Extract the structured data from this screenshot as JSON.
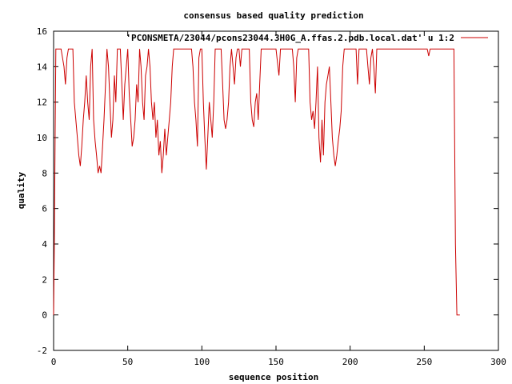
{
  "chart_data": {
    "type": "line",
    "title": "consensus based quality prediction",
    "xlabel": "sequence position",
    "ylabel": "quality",
    "xlim": [
      0,
      300
    ],
    "ylim": [
      -2,
      16
    ],
    "xticks": [
      0,
      50,
      100,
      150,
      200,
      250,
      300
    ],
    "yticks": [
      -2,
      0,
      2,
      4,
      6,
      8,
      10,
      12,
      14,
      16
    ],
    "grid": false,
    "legend_position": "top-right",
    "series": [
      {
        "name": "'PCONSMETA/23044/pcons23044.3H0G_A.ffas.2.pdb.local.dat' u 1:2",
        "color": "#cc0000",
        "points": [
          [
            0,
            0
          ],
          [
            0.5,
            4
          ],
          [
            1,
            10
          ],
          [
            1.5,
            15
          ],
          [
            5,
            15
          ],
          [
            7,
            14
          ],
          [
            8,
            13
          ],
          [
            9,
            14.5
          ],
          [
            10,
            15
          ],
          [
            12,
            15
          ],
          [
            13,
            15
          ],
          [
            14,
            12
          ],
          [
            15,
            11
          ],
          [
            16,
            10
          ],
          [
            17,
            9
          ],
          [
            18,
            8.4
          ],
          [
            19,
            9.5
          ],
          [
            20,
            11
          ],
          [
            21,
            12
          ],
          [
            22,
            13.5
          ],
          [
            23,
            12
          ],
          [
            24,
            11
          ],
          [
            25,
            14
          ],
          [
            26,
            15
          ],
          [
            27,
            11
          ],
          [
            28,
            9.8
          ],
          [
            29,
            9
          ],
          [
            30,
            8
          ],
          [
            31,
            8.4
          ],
          [
            32,
            8
          ],
          [
            33,
            9.5
          ],
          [
            34,
            11
          ],
          [
            35,
            13
          ],
          [
            36,
            15
          ],
          [
            37,
            14
          ],
          [
            38,
            12
          ],
          [
            39,
            10
          ],
          [
            40,
            11
          ],
          [
            41,
            13.5
          ],
          [
            42,
            12
          ],
          [
            43,
            15
          ],
          [
            45,
            15
          ],
          [
            46,
            13
          ],
          [
            47,
            11
          ],
          [
            48,
            13
          ],
          [
            50,
            15
          ],
          [
            51,
            12.5
          ],
          [
            52,
            11
          ],
          [
            53,
            9.5
          ],
          [
            54,
            10
          ],
          [
            55,
            11
          ],
          [
            56,
            13
          ],
          [
            57,
            12
          ],
          [
            58,
            15
          ],
          [
            59,
            14
          ],
          [
            60,
            12
          ],
          [
            61,
            11
          ],
          [
            62,
            13.5
          ],
          [
            63,
            14
          ],
          [
            64,
            15
          ],
          [
            65,
            14
          ],
          [
            66,
            12
          ],
          [
            67,
            11
          ],
          [
            68,
            12
          ],
          [
            69,
            10
          ],
          [
            70,
            11
          ],
          [
            71,
            9
          ],
          [
            72,
            9.8
          ],
          [
            73,
            8
          ],
          [
            74,
            9
          ],
          [
            75,
            10.5
          ],
          [
            76,
            9
          ],
          [
            77,
            10
          ],
          [
            78,
            11
          ],
          [
            79,
            12
          ],
          [
            80,
            14
          ],
          [
            81,
            15
          ],
          [
            93,
            15
          ],
          [
            94,
            14
          ],
          [
            95,
            12
          ],
          [
            96,
            11
          ],
          [
            97,
            9.5
          ],
          [
            98,
            14.5
          ],
          [
            99,
            15
          ],
          [
            100,
            15
          ],
          [
            101,
            12
          ],
          [
            102,
            10
          ],
          [
            103,
            8.2
          ],
          [
            104,
            10
          ],
          [
            105,
            12
          ],
          [
            106,
            11
          ],
          [
            107,
            10
          ],
          [
            108,
            12
          ],
          [
            109,
            15
          ],
          [
            113,
            15
          ],
          [
            114,
            13
          ],
          [
            115,
            11
          ],
          [
            116,
            10.5
          ],
          [
            117,
            11
          ],
          [
            118,
            12
          ],
          [
            119,
            14
          ],
          [
            120,
            15
          ],
          [
            121,
            14
          ],
          [
            122,
            13
          ],
          [
            123,
            14.5
          ],
          [
            124,
            15
          ],
          [
            125,
            15
          ],
          [
            126,
            14
          ],
          [
            127,
            15
          ],
          [
            132,
            15
          ],
          [
            133,
            12
          ],
          [
            134,
            11
          ],
          [
            135,
            10.6
          ],
          [
            136,
            12
          ],
          [
            137,
            12.5
          ],
          [
            138,
            11
          ],
          [
            139,
            13
          ],
          [
            140,
            15
          ],
          [
            150,
            15
          ],
          [
            152,
            13.5
          ],
          [
            153,
            15
          ],
          [
            161,
            15
          ],
          [
            162,
            14
          ],
          [
            163,
            12
          ],
          [
            164,
            14.5
          ],
          [
            165,
            15
          ],
          [
            172,
            15
          ],
          [
            173,
            12
          ],
          [
            174,
            11
          ],
          [
            175,
            11.5
          ],
          [
            176,
            10.5
          ],
          [
            177,
            12
          ],
          [
            178,
            14
          ],
          [
            179,
            10
          ],
          [
            180,
            8.6
          ],
          [
            181,
            11
          ],
          [
            182,
            9
          ],
          [
            183,
            12
          ],
          [
            184,
            13
          ],
          [
            185,
            13.5
          ],
          [
            186,
            14
          ],
          [
            187,
            12
          ],
          [
            188,
            10
          ],
          [
            189,
            9
          ],
          [
            190,
            8.4
          ],
          [
            191,
            9
          ],
          [
            192,
            9.8
          ],
          [
            193,
            10.5
          ],
          [
            194,
            11.5
          ],
          [
            195,
            14
          ],
          [
            196,
            15
          ],
          [
            204,
            15
          ],
          [
            205,
            13
          ],
          [
            206,
            15
          ],
          [
            211,
            15
          ],
          [
            212,
            14
          ],
          [
            213,
            13
          ],
          [
            214,
            14.5
          ],
          [
            215,
            15
          ],
          [
            216,
            14
          ],
          [
            217,
            12.5
          ],
          [
            218,
            15
          ],
          [
            252,
            15
          ],
          [
            253,
            14.6
          ],
          [
            254,
            15
          ],
          [
            270,
            15
          ],
          [
            271,
            4
          ],
          [
            272,
            0
          ],
          [
            274,
            0
          ]
        ]
      }
    ]
  }
}
